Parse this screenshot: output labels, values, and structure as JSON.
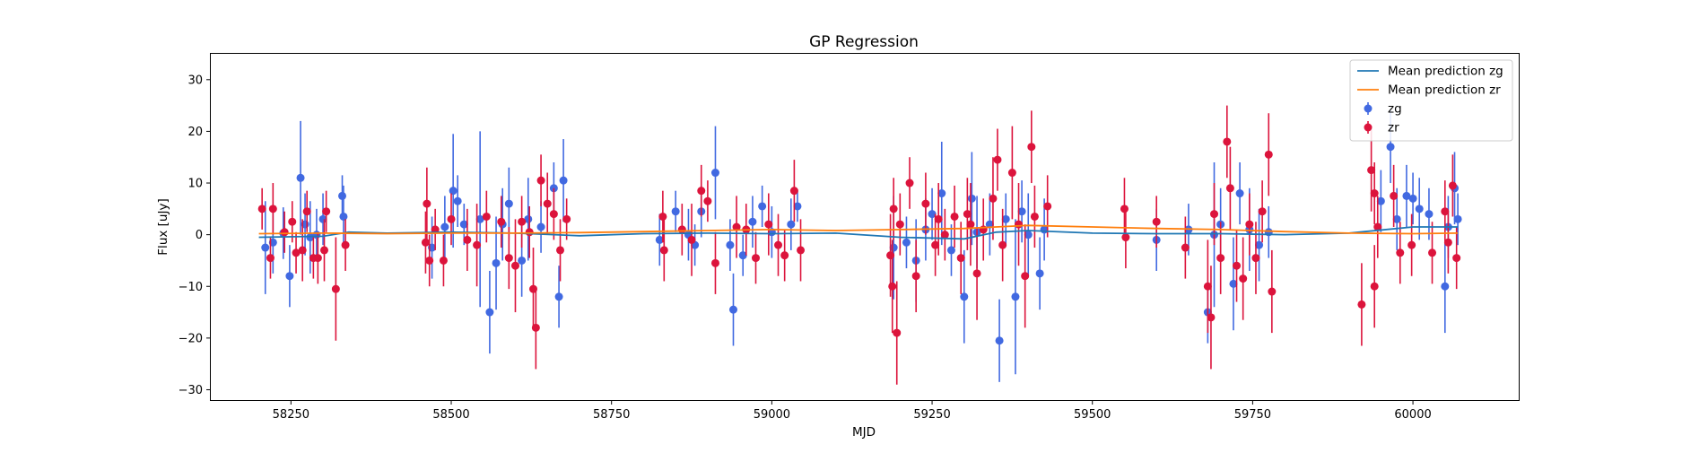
{
  "chart_data": {
    "type": "scatter",
    "title": "GP Regression",
    "xlabel": "MJD",
    "ylabel": "Flux [uJy]",
    "xlim": [
      58125,
      60165
    ],
    "ylim": [
      -32,
      35
    ],
    "xticks": [
      58250,
      58500,
      58750,
      59000,
      59250,
      59500,
      59750,
      60000
    ],
    "yticks": [
      -30,
      -20,
      -10,
      0,
      10,
      20,
      30
    ],
    "grid": false,
    "legend_position": "top-right",
    "series": [
      {
        "name": "zg",
        "kind": "errorbar",
        "color": "#4169E1",
        "points": [
          [
            58210,
            -2.5,
            9
          ],
          [
            58222,
            -1.5,
            6
          ],
          [
            58238,
            0.3,
            5
          ],
          [
            58248,
            -8,
            6
          ],
          [
            58265,
            11,
            11
          ],
          [
            58272,
            2,
            6
          ],
          [
            58280,
            -0.5,
            7
          ],
          [
            58290,
            0,
            5
          ],
          [
            58300,
            3,
            5
          ],
          [
            58330,
            7.5,
            4
          ],
          [
            58332,
            3.5,
            6
          ],
          [
            58470,
            -2.5,
            6
          ],
          [
            58490,
            1.5,
            6
          ],
          [
            58503,
            8.5,
            11
          ],
          [
            58510,
            6.5,
            5
          ],
          [
            58520,
            2,
            4
          ],
          [
            58545,
            3,
            17
          ],
          [
            58560,
            -15,
            8
          ],
          [
            58570,
            -5.5,
            9
          ],
          [
            58580,
            2,
            7
          ],
          [
            58590,
            6,
            7
          ],
          [
            58610,
            -5,
            7
          ],
          [
            58620,
            3,
            8
          ],
          [
            58640,
            1.5,
            5
          ],
          [
            58660,
            9,
            5
          ],
          [
            58668,
            -12,
            6
          ],
          [
            58675,
            10.5,
            8
          ],
          [
            58825,
            -1,
            5
          ],
          [
            58850,
            4.5,
            4
          ],
          [
            58870,
            0,
            5
          ],
          [
            58880,
            -2,
            4
          ],
          [
            58890,
            4.5,
            5
          ],
          [
            58912,
            12,
            9
          ],
          [
            58935,
            -2,
            5
          ],
          [
            58940,
            -14.5,
            7
          ],
          [
            58955,
            -4,
            4
          ],
          [
            58970,
            2.5,
            5
          ],
          [
            58985,
            5.5,
            4
          ],
          [
            59000,
            0.5,
            5
          ],
          [
            59030,
            2,
            5
          ],
          [
            59040,
            5.5,
            3
          ],
          [
            59190,
            -2.5,
            10
          ],
          [
            59210,
            -1.5,
            5
          ],
          [
            59225,
            -5,
            8
          ],
          [
            59240,
            1,
            6
          ],
          [
            59250,
            4,
            5
          ],
          [
            59265,
            8,
            10
          ],
          [
            59280,
            -3,
            5
          ],
          [
            59300,
            -12,
            9
          ],
          [
            59312,
            7,
            9
          ],
          [
            59320,
            0.5,
            7
          ],
          [
            59340,
            2,
            6
          ],
          [
            59355,
            -20.5,
            8
          ],
          [
            59365,
            3,
            5
          ],
          [
            59380,
            -12,
            15
          ],
          [
            59390,
            4.5,
            6
          ],
          [
            59400,
            0,
            8
          ],
          [
            59418,
            -7.5,
            7
          ],
          [
            59425,
            1,
            6
          ],
          [
            59600,
            -1,
            6
          ],
          [
            59650,
            1,
            5
          ],
          [
            59680,
            -15,
            6
          ],
          [
            59690,
            0,
            14
          ],
          [
            59700,
            2,
            7
          ],
          [
            59720,
            -9.5,
            9
          ],
          [
            59730,
            8,
            6
          ],
          [
            59745,
            1,
            8
          ],
          [
            59760,
            -2,
            7
          ],
          [
            59775,
            0.5,
            5
          ],
          [
            59950,
            6.5,
            6
          ],
          [
            59965,
            17,
            7
          ],
          [
            59975,
            3,
            6
          ],
          [
            59990,
            7.5,
            6
          ],
          [
            60000,
            7,
            5
          ],
          [
            60010,
            5,
            6
          ],
          [
            60025,
            4,
            5
          ],
          [
            60050,
            -10,
            9
          ],
          [
            60055,
            1.5,
            6
          ],
          [
            60065,
            9,
            7
          ],
          [
            60070,
            3,
            5
          ]
        ]
      },
      {
        "name": "zr",
        "kind": "errorbar",
        "color": "#DC143C",
        "points": [
          [
            58205,
            5,
            4
          ],
          [
            58218,
            -4.5,
            4
          ],
          [
            58222,
            5,
            5
          ],
          [
            58240,
            0.5,
            4
          ],
          [
            58252,
            2.5,
            4
          ],
          [
            58258,
            -3.5,
            4
          ],
          [
            58268,
            -3,
            6
          ],
          [
            58275,
            4.5,
            4
          ],
          [
            58285,
            -4.5,
            4
          ],
          [
            58292,
            -4.5,
            5
          ],
          [
            58302,
            -3,
            6
          ],
          [
            58305,
            4.5,
            4
          ],
          [
            58320,
            -10.5,
            10
          ],
          [
            58335,
            -2,
            5
          ],
          [
            58460,
            -1.5,
            6
          ],
          [
            58462,
            6,
            7
          ],
          [
            58466,
            -5,
            5
          ],
          [
            58475,
            1,
            4
          ],
          [
            58488,
            -5,
            5
          ],
          [
            58500,
            3,
            5
          ],
          [
            58525,
            -1,
            6
          ],
          [
            58540,
            -2,
            8
          ],
          [
            58555,
            3.5,
            5
          ],
          [
            58578,
            2.5,
            5
          ],
          [
            58590,
            -4.5,
            6
          ],
          [
            58600,
            -6,
            9
          ],
          [
            58610,
            2.5,
            5
          ],
          [
            58622,
            0.5,
            5
          ],
          [
            58628,
            -10.5,
            8
          ],
          [
            58632,
            -18,
            8
          ],
          [
            58640,
            10.5,
            5
          ],
          [
            58650,
            6,
            6
          ],
          [
            58660,
            4,
            5
          ],
          [
            58670,
            -3,
            6
          ],
          [
            58680,
            3,
            4
          ],
          [
            58830,
            3.5,
            5
          ],
          [
            58832,
            -3,
            6
          ],
          [
            58860,
            1,
            5
          ],
          [
            58875,
            -1,
            7
          ],
          [
            58890,
            8.5,
            5
          ],
          [
            58900,
            6.5,
            4
          ],
          [
            58912,
            -5.5,
            6
          ],
          [
            58945,
            1.5,
            6
          ],
          [
            58960,
            1,
            5
          ],
          [
            58975,
            -4.5,
            5
          ],
          [
            58995,
            2,
            6
          ],
          [
            59010,
            -2,
            6
          ],
          [
            59020,
            -4,
            5
          ],
          [
            59035,
            8.5,
            6
          ],
          [
            59045,
            -3,
            6
          ],
          [
            59185,
            -4,
            8
          ],
          [
            59188,
            -10,
            9
          ],
          [
            59190,
            5,
            6
          ],
          [
            59195,
            -19,
            10
          ],
          [
            59200,
            2,
            6
          ],
          [
            59215,
            10,
            5
          ],
          [
            59225,
            -8,
            7
          ],
          [
            59240,
            6,
            6
          ],
          [
            59255,
            -2,
            6
          ],
          [
            59260,
            3,
            7
          ],
          [
            59270,
            0,
            5
          ],
          [
            59285,
            3.5,
            6
          ],
          [
            59295,
            -4.5,
            7
          ],
          [
            59305,
            4,
            7
          ],
          [
            59310,
            2,
            8
          ],
          [
            59320,
            -7.5,
            9
          ],
          [
            59330,
            1,
            6
          ],
          [
            59345,
            7,
            8
          ],
          [
            59352,
            14.5,
            6
          ],
          [
            59360,
            -2,
            7
          ],
          [
            59375,
            12,
            9
          ],
          [
            59385,
            2,
            8
          ],
          [
            59395,
            -8,
            10
          ],
          [
            59405,
            17,
            7
          ],
          [
            59410,
            3.5,
            6
          ],
          [
            59430,
            5.5,
            6
          ],
          [
            59550,
            5,
            6
          ],
          [
            59552,
            -0.5,
            6
          ],
          [
            59600,
            2.5,
            5
          ],
          [
            59645,
            -2.5,
            6
          ],
          [
            59680,
            -10,
            9
          ],
          [
            59685,
            -16,
            10
          ],
          [
            59690,
            4,
            6
          ],
          [
            59700,
            -4.5,
            7
          ],
          [
            59710,
            18,
            7
          ],
          [
            59715,
            9,
            8
          ],
          [
            59725,
            -6,
            7
          ],
          [
            59735,
            -8.5,
            8
          ],
          [
            59745,
            2,
            6
          ],
          [
            59755,
            -4.5,
            7
          ],
          [
            59765,
            4.5,
            6
          ],
          [
            59775,
            15.5,
            8
          ],
          [
            59780,
            -11,
            8
          ],
          [
            59920,
            -13.5,
            8
          ],
          [
            59935,
            12.5,
            8
          ],
          [
            59940,
            8,
            6
          ],
          [
            59940,
            -10,
            8
          ],
          [
            59945,
            1.5,
            6
          ],
          [
            59970,
            7.5,
            6
          ],
          [
            59980,
            -3.5,
            6
          ],
          [
            59998,
            -2,
            6
          ],
          [
            60030,
            -3.5,
            6
          ],
          [
            60050,
            4.5,
            6
          ],
          [
            60055,
            -1.5,
            6
          ],
          [
            60062,
            9.5,
            6
          ],
          [
            60068,
            -4.5,
            6
          ]
        ]
      },
      {
        "name": "Mean prediction zg",
        "kind": "line",
        "color": "#1f77b4",
        "x": [
          58200,
          58300,
          58340,
          58400,
          58500,
          58600,
          58700,
          58800,
          58900,
          59000,
          59100,
          59200,
          59300,
          59350,
          59400,
          59500,
          59600,
          59700,
          59800,
          59900,
          60000,
          60070
        ],
        "y": [
          -0.5,
          -0.3,
          0.5,
          0.3,
          0.5,
          0.3,
          -0.2,
          0.2,
          0.3,
          0.2,
          0.3,
          -0.5,
          -0.8,
          0.5,
          0.8,
          0.3,
          0.2,
          0.2,
          0.0,
          0.3,
          1.5,
          1.5
        ]
      },
      {
        "name": "Mean prediction zr",
        "kind": "line",
        "color": "#ff7f0e",
        "x": [
          58200,
          58300,
          58400,
          58500,
          58600,
          58700,
          58800,
          58900,
          59000,
          59100,
          59200,
          59300,
          59350,
          59400,
          59500,
          59600,
          59700,
          59800,
          59900,
          60000,
          60070
        ],
        "y": [
          0.2,
          0.3,
          0.2,
          0.3,
          0.3,
          0.4,
          0.6,
          0.8,
          1.0,
          0.8,
          1.0,
          1.2,
          1.5,
          1.8,
          1.5,
          1.2,
          1.0,
          0.6,
          0.3,
          0.2,
          0.3
        ]
      }
    ]
  }
}
